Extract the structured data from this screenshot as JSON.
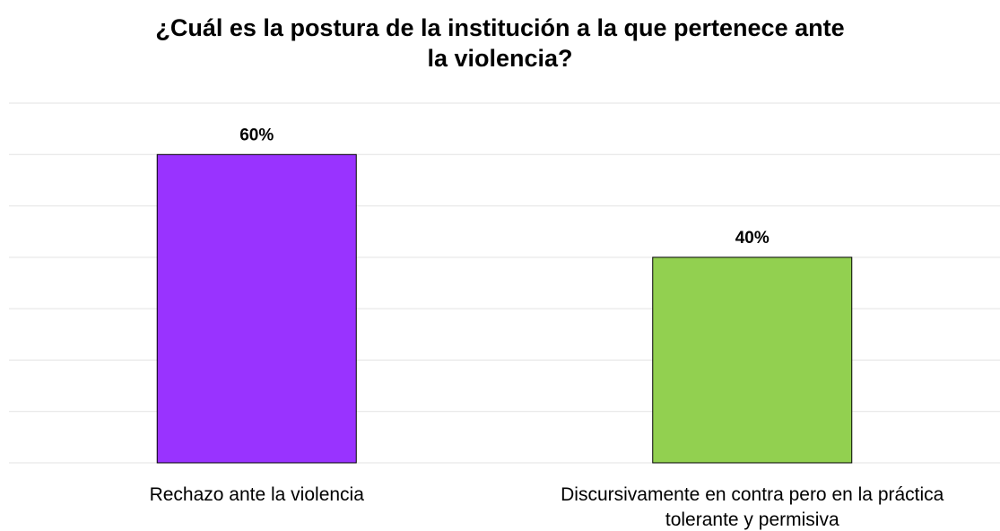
{
  "chart_data": {
    "type": "bar",
    "title_lines": [
      "¿Cuál es la postura de la institución a la que pertenece ante",
      "la violencia?"
    ],
    "categories": [
      [
        "Rechazo ante la violencia"
      ],
      [
        "Discursivamente en contra pero en la práctica",
        "tolerante y permisiva"
      ]
    ],
    "values": [
      60,
      40
    ],
    "data_labels": [
      "60%",
      "40%"
    ],
    "colors": [
      "#9933ff",
      "#92d050"
    ],
    "ylim": [
      0,
      70
    ],
    "grid": true,
    "legend": "none"
  }
}
